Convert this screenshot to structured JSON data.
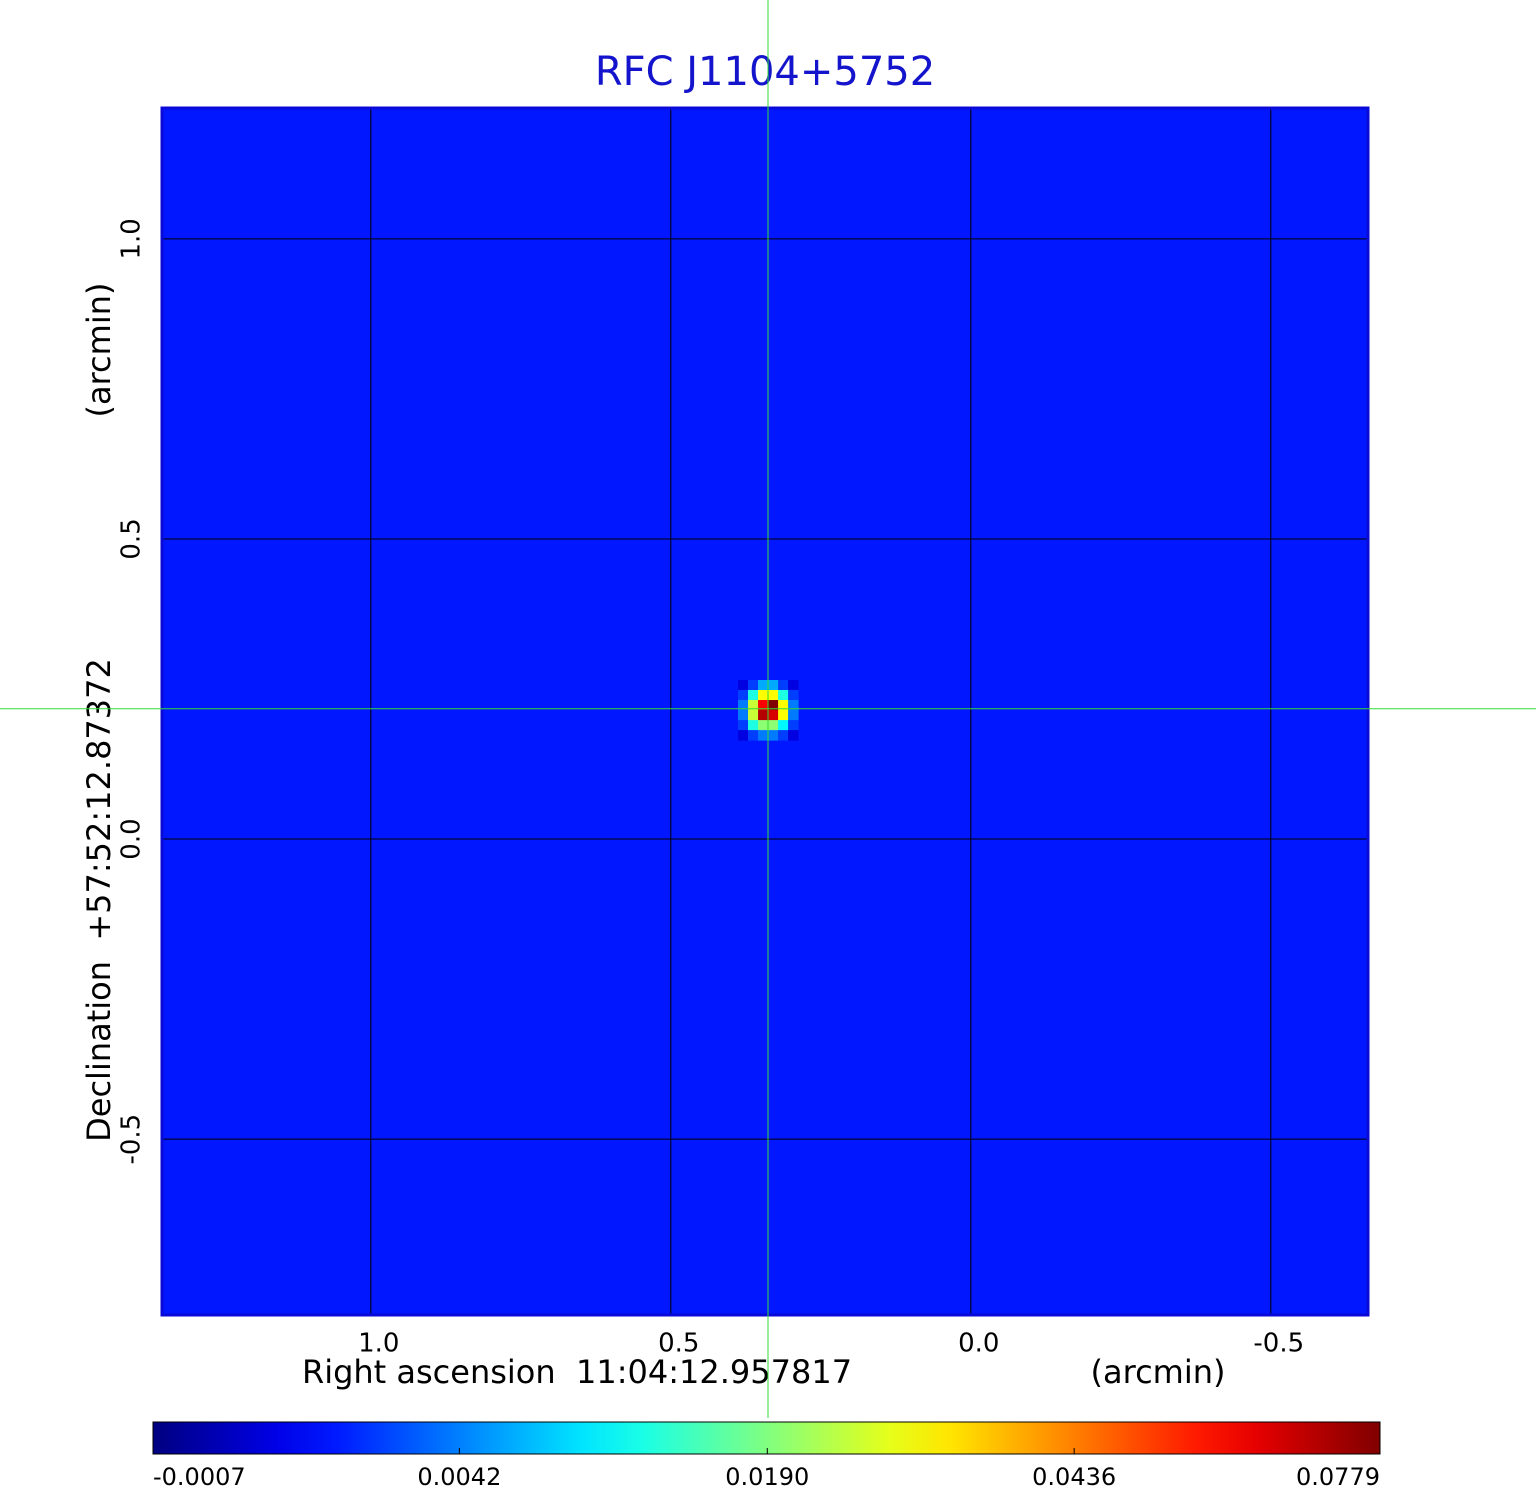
{
  "chart_data": {
    "type": "image",
    "title": "RFC J1104+5752",
    "title_color": "#1414cc",
    "xlabel": "Right ascension  11:04:12.957817",
    "xlabel_unit": "(arcmin)",
    "ylabel": "Declination  +57:52:12.87372",
    "ylabel_unit": "(arcmin)",
    "xlim": [
      1.348,
      -0.662
    ],
    "ylim": [
      -0.793,
      1.218
    ],
    "xticks": [
      {
        "value": 1,
        "label": "1.0"
      },
      {
        "value": 0.5,
        "label": "0.5"
      },
      {
        "value": 0,
        "label": "0.0"
      },
      {
        "value": -0.5,
        "label": "-0.5"
      }
    ],
    "yticks": [
      {
        "value": 1,
        "label": "1.0"
      },
      {
        "value": 0.5,
        "label": "0.5"
      },
      {
        "value": 0,
        "label": "0.0"
      },
      {
        "value": -0.5,
        "label": "-0.5"
      }
    ],
    "grid": true,
    "grid_color": "#000000",
    "frame_color": "#0a0ad8",
    "colormap": "jet",
    "background": 0.001,
    "source": {
      "x0": 0.388,
      "y0": 0.265,
      "pixel_size": 0.0167,
      "values": [
        [
          0.0,
          0.002,
          0.006,
          0.006,
          0.002,
          0.0
        ],
        [
          0.002,
          0.012,
          0.03,
          0.03,
          0.012,
          0.002
        ],
        [
          0.004,
          0.025,
          0.06,
          0.078,
          0.03,
          0.004
        ],
        [
          0.004,
          0.025,
          0.07,
          0.065,
          0.03,
          0.004
        ],
        [
          0.002,
          0.012,
          0.02,
          0.02,
          0.01,
          0.002
        ],
        [
          0.0,
          0.002,
          0.004,
          0.004,
          0.002,
          0.0
        ]
      ]
    },
    "crosshair": {
      "x": 0.338,
      "y": 0.217,
      "color": "#33dd33"
    },
    "colorbar": {
      "lim": [
        -0.0007,
        0.0779
      ],
      "scale": "sqrt",
      "ticks": [
        -0.0007,
        0.0042,
        {
          "value": 0.019,
          "label": "0.0190"
        },
        0.0436,
        0.0779
      ]
    }
  }
}
